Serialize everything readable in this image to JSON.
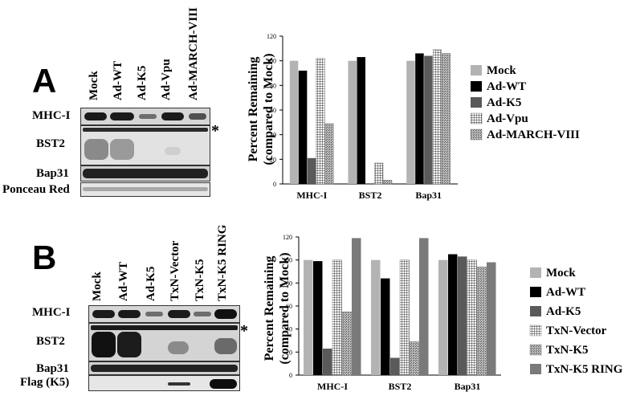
{
  "panel_a": {
    "letter": "A",
    "lanes": [
      "Mock",
      "Ad-WT",
      "Ad-K5",
      "Ad-Vpu",
      "Ad-MARCH-VIII"
    ],
    "blots": [
      "MHC-I",
      "BST2",
      "Bap31",
      "Ponceau Red"
    ],
    "asterisk": "*"
  },
  "panel_b": {
    "letter": "B",
    "lanes": [
      "Mock",
      "Ad-WT",
      "Ad-K5",
      "TxN-Vector",
      "TxN-K5",
      "TxN-K5 RING"
    ],
    "blots": [
      "MHC-I",
      "BST2",
      "Bap31",
      "Flag (K5)"
    ],
    "asterisk": "*"
  },
  "chart_data": [
    {
      "type": "bar",
      "ylabel": "Percent Remaining (compared to Mock)",
      "ylim": [
        0,
        120
      ],
      "yticks": [
        0,
        20,
        40,
        60,
        80,
        100,
        120
      ],
      "categories": [
        "MHC-I",
        "BST2",
        "Bap31"
      ],
      "legend_position": "right",
      "series": [
        {
          "name": "Mock",
          "values": [
            100,
            100,
            100
          ],
          "color": "#b3b3b3",
          "pattern": "solid"
        },
        {
          "name": "Ad-WT",
          "values": [
            92,
            103,
            106
          ],
          "color": "#000000",
          "pattern": "solid"
        },
        {
          "name": "Ad-K5",
          "values": [
            21,
            0,
            104
          ],
          "color": "#5a5a5a",
          "pattern": "solid"
        },
        {
          "name": "Ad-Vpu",
          "values": [
            102,
            17,
            109
          ],
          "color": "#8c8c8c",
          "pattern": "grid"
        },
        {
          "name": "Ad-MARCH-VIII",
          "values": [
            49,
            3,
            106
          ],
          "color": "#9a9a9a",
          "pattern": "dots"
        }
      ]
    },
    {
      "type": "bar",
      "ylabel": "Percent Remaining (compared to Mock)",
      "ylim": [
        0,
        120
      ],
      "yticks": [
        0,
        20,
        40,
        60,
        80,
        100,
        120
      ],
      "categories": [
        "MHC-I",
        "BST2",
        "Bap31"
      ],
      "legend_position": "right",
      "series": [
        {
          "name": "Mock",
          "values": [
            100,
            100,
            100
          ],
          "color": "#b3b3b3",
          "pattern": "solid"
        },
        {
          "name": "Ad-WT",
          "values": [
            99,
            84,
            105
          ],
          "color": "#000000",
          "pattern": "solid"
        },
        {
          "name": "Ad-K5",
          "values": [
            23,
            15,
            103
          ],
          "color": "#5a5a5a",
          "pattern": "solid"
        },
        {
          "name": "TxN-Vector",
          "values": [
            100,
            100,
            100
          ],
          "color": "#8c8c8c",
          "pattern": "grid"
        },
        {
          "name": "TxN-K5",
          "values": [
            55,
            29,
            94
          ],
          "color": "#9a9a9a",
          "pattern": "dots"
        },
        {
          "name": "TxN-K5 RING",
          "values": [
            119,
            119,
            98
          ],
          "color": "#7a7a7a",
          "pattern": "solid"
        }
      ]
    }
  ]
}
